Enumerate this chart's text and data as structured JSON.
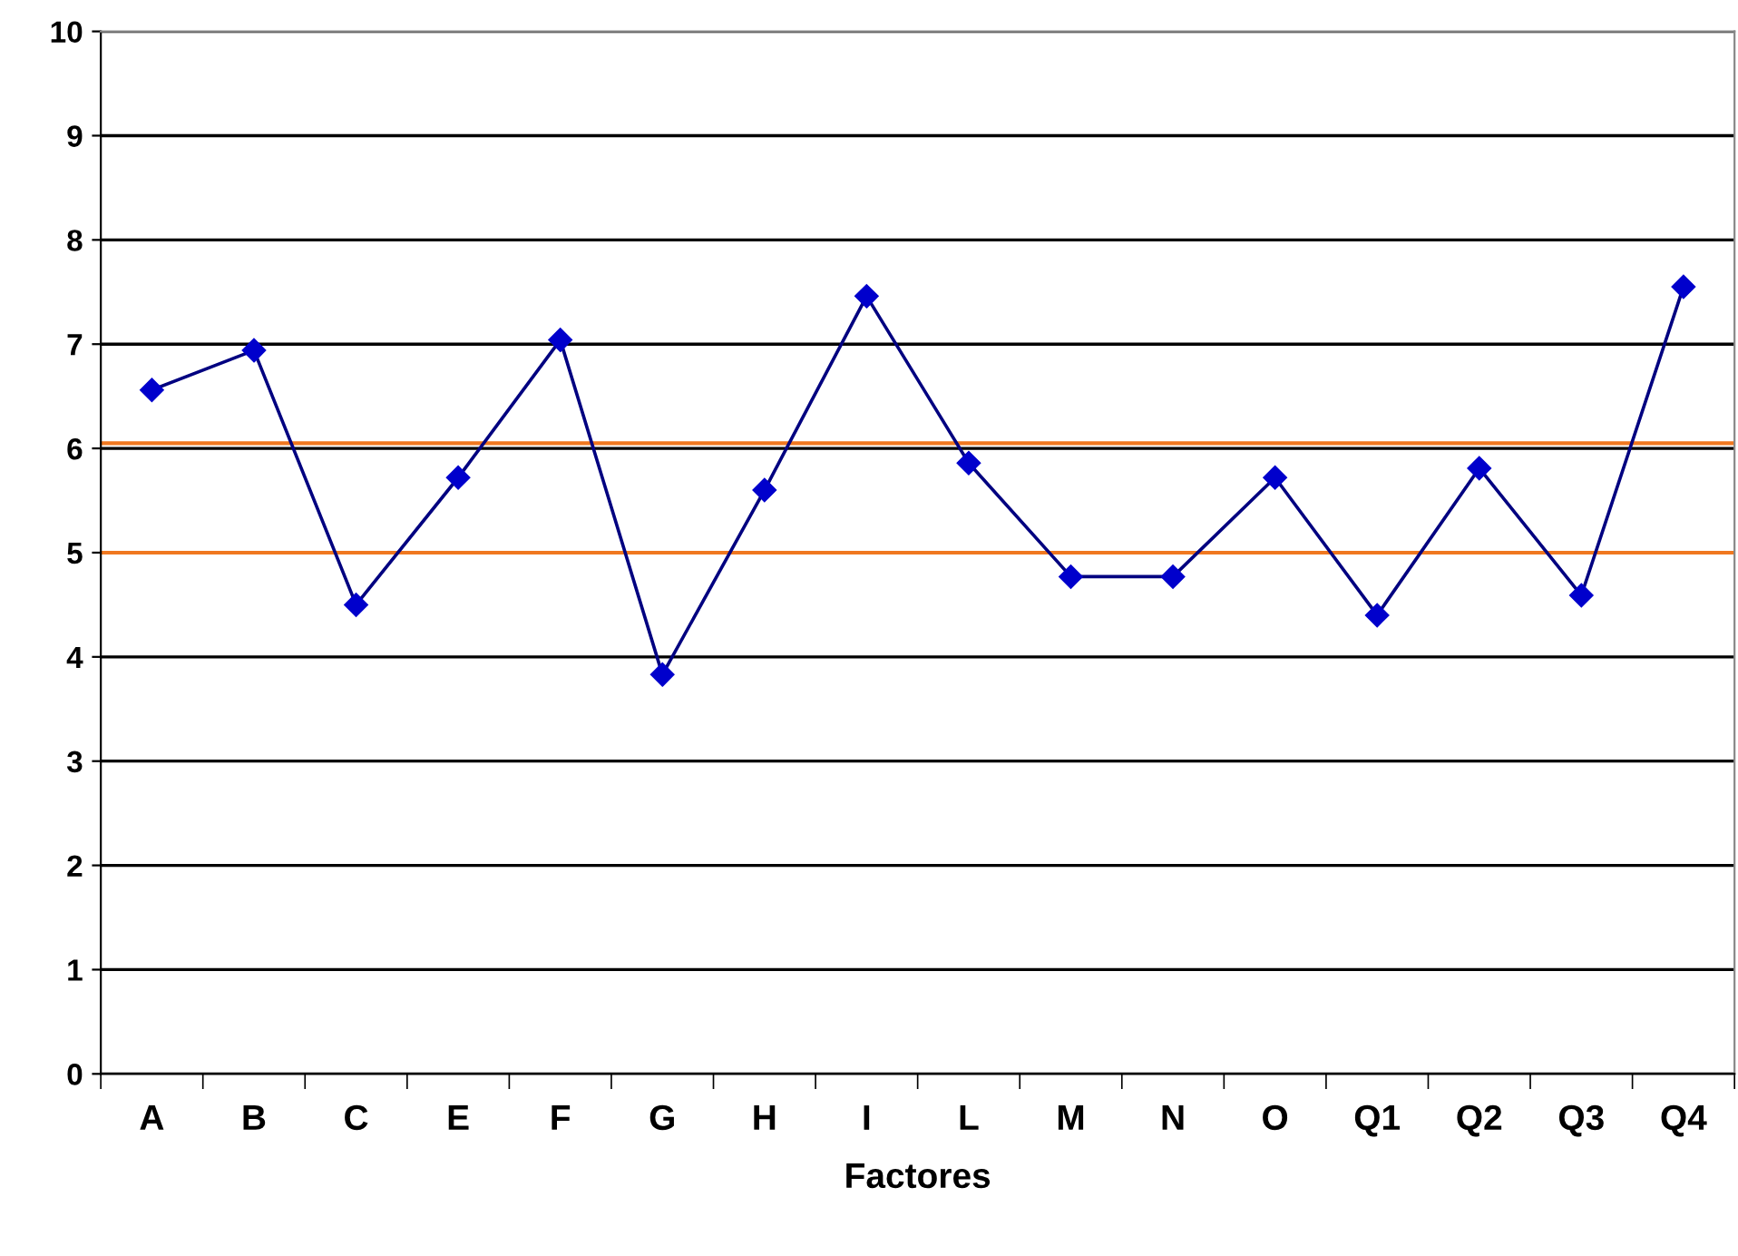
{
  "chart_data": {
    "type": "line",
    "xlabel": "Factores",
    "categories": [
      "A",
      "B",
      "C",
      "E",
      "F",
      "G",
      "H",
      "I",
      "L",
      "M",
      "N",
      "O",
      "Q1",
      "Q2",
      "Q3",
      "Q4"
    ],
    "series": [
      {
        "color": "#000080",
        "values": [
          6.56,
          6.94,
          4.5,
          5.72,
          7.04,
          3.83,
          5.6,
          7.46,
          5.86,
          4.77,
          4.77,
          5.72,
          4.4,
          5.81,
          4.59,
          7.55
        ]
      }
    ],
    "marker": "diamond",
    "line_style": "solid",
    "ylim": [
      0,
      10
    ],
    "yticks": [
      0,
      1,
      2,
      3,
      4,
      5,
      6,
      7,
      8,
      9,
      10
    ],
    "grid": "y",
    "legend": false,
    "ref_lines": [
      {
        "axis": "y",
        "value": 6.05,
        "color": "#f07820"
      },
      {
        "axis": "y",
        "value": 5.0,
        "color": "#f07820"
      }
    ]
  }
}
